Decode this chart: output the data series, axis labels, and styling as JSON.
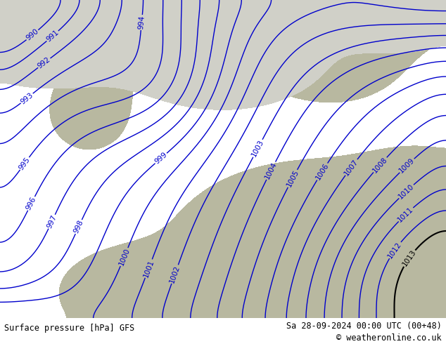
{
  "title_left": "Surface pressure [hPa] GFS",
  "title_right": "Sa 28-09-2024 00:00 UTC (00+48)",
  "copyright": "© weatheronline.co.uk",
  "bg_color_green": "#90c060",
  "land_color_gray": "#b8b8a0",
  "sea_light_gray": "#d0d0c8",
  "contour_color_blue": "#0000cc",
  "contour_color_black": "#000000",
  "footer_bg": "#c8c8c8",
  "figsize": [
    6.34,
    4.9
  ],
  "dpi": 100,
  "pressure_levels_blue": [
    990,
    991,
    992,
    993,
    994,
    995,
    996,
    997,
    998,
    999,
    1000,
    1001,
    1002,
    1003,
    1004,
    1005,
    1006,
    1007,
    1008,
    1009,
    1010,
    1011,
    1012
  ],
  "pressure_level_black": 1013,
  "clabel_fontsize": 7.5
}
